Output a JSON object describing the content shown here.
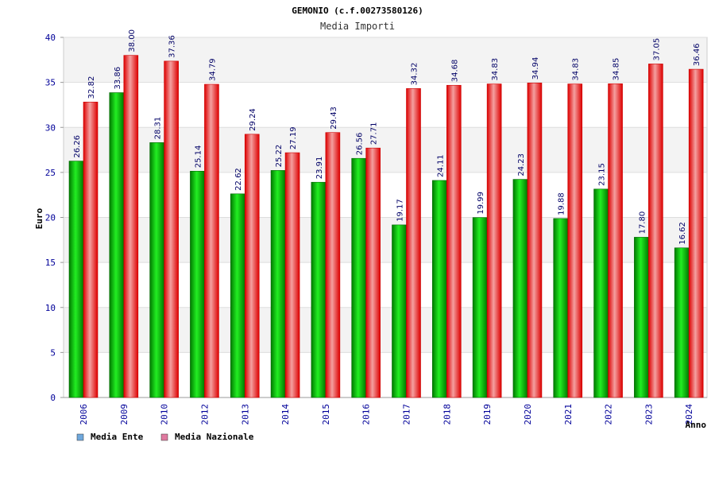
{
  "chart_data": {
    "type": "bar",
    "title": "GEMONIO (c.f.00273580126)",
    "subtitle": "Media Importi",
    "xlabel": "Anno",
    "ylabel": "Euro",
    "ylim": [
      0,
      40
    ],
    "yticks": [
      0,
      5,
      10,
      15,
      20,
      25,
      30,
      35,
      40
    ],
    "grid": true,
    "legend_position": "bottom-left",
    "categories": [
      "2006",
      "2009",
      "2010",
      "2012",
      "2013",
      "2014",
      "2015",
      "2016",
      "2017",
      "2018",
      "2019",
      "2020",
      "2021",
      "2022",
      "2023",
      "2024"
    ],
    "series": [
      {
        "name": "Media Ente",
        "color": "#00aa00",
        "legend_color": "#6fa8dc",
        "values": [
          26.26,
          33.86,
          28.31,
          25.14,
          22.62,
          25.22,
          23.91,
          26.56,
          19.17,
          24.11,
          19.99,
          24.23,
          19.88,
          23.15,
          17.8,
          16.62
        ],
        "labels": [
          "26.26",
          "33.86",
          "28.31",
          "25.14",
          "22.62",
          "25.22",
          "23.91",
          "26.56",
          "19.17",
          "24.11",
          "19.99",
          "24.23",
          "19.88",
          "23.15",
          "17.80",
          "16.62"
        ]
      },
      {
        "name": "Media Nazionale",
        "color": "#ee1111",
        "legend_color": "#e07aa0",
        "values": [
          32.82,
          38.0,
          37.36,
          34.79,
          29.24,
          27.19,
          29.43,
          27.71,
          34.32,
          34.68,
          34.83,
          34.94,
          34.83,
          34.85,
          37.05,
          36.46
        ],
        "labels": [
          "32.82",
          "38.00",
          "37.36",
          "34.79",
          "29.24",
          "27.19",
          "29.43",
          "27.71",
          "34.32",
          "34.68",
          "34.83",
          "34.94",
          "34.83",
          "34.85",
          "37.05",
          "36.46"
        ]
      }
    ]
  }
}
